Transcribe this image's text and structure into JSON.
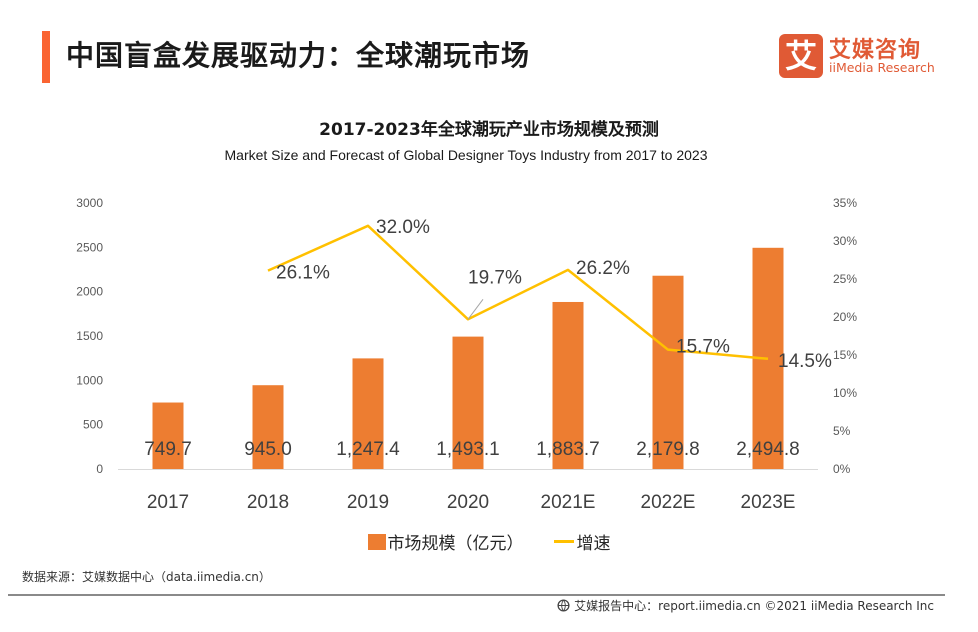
{
  "header": {
    "title": "中国盲盒发展驱动力：全球潮玩市场",
    "logo": {
      "mark": "艾",
      "name_cn": "艾媒咨询",
      "name_en": "iiMedia Research"
    }
  },
  "colors": {
    "accent": "#fa6432",
    "bar": "#ed7d31",
    "line": "#ffc000",
    "brand": "#e05a35"
  },
  "chart_data": {
    "type": "bar",
    "title": "2017-2023年全球潮玩产业市场规模及预测",
    "subtitle": "Market Size and Forecast of Global Designer Toys Industry from 2017 to 2023",
    "categories": [
      "2017",
      "2018",
      "2019",
      "2020",
      "2021E",
      "2022E",
      "2023E"
    ],
    "series": [
      {
        "name": "市场规模（亿元）",
        "type": "bar",
        "axis": "left",
        "values": [
          749.7,
          945.0,
          1247.4,
          1493.1,
          1883.7,
          2179.8,
          2494.8
        ],
        "labels": [
          "749.7",
          "945.0",
          "1,247.4",
          "1,493.1",
          "1,883.7",
          "2,179.8",
          "2,494.8"
        ]
      },
      {
        "name": "增速",
        "type": "line",
        "axis": "right",
        "values": [
          null,
          26.1,
          32.0,
          19.7,
          26.2,
          15.7,
          14.5
        ],
        "labels": [
          null,
          "26.1%",
          "32.0%",
          "19.7%",
          "26.2%",
          "15.7%",
          "14.5%"
        ]
      }
    ],
    "left_axis": {
      "ylim": [
        0,
        3000
      ],
      "ticks": [
        "0",
        "500",
        "1000",
        "1500",
        "2000",
        "2500",
        "3000"
      ]
    },
    "right_axis": {
      "ylim": [
        0,
        35
      ],
      "ticks": [
        "0%",
        "5%",
        "10%",
        "15%",
        "20%",
        "25%",
        "30%",
        "35%"
      ]
    },
    "xlabel": "",
    "ylabel": "",
    "grid": false,
    "legend": {
      "position": "bottom",
      "items": [
        "市场规模（亿元）",
        "增速"
      ]
    }
  },
  "source": "数据来源：艾媒数据中心（data.iimedia.cn）",
  "footer": "艾媒报告中心：report.iimedia.cn   ©2021  iiMedia Research  Inc"
}
